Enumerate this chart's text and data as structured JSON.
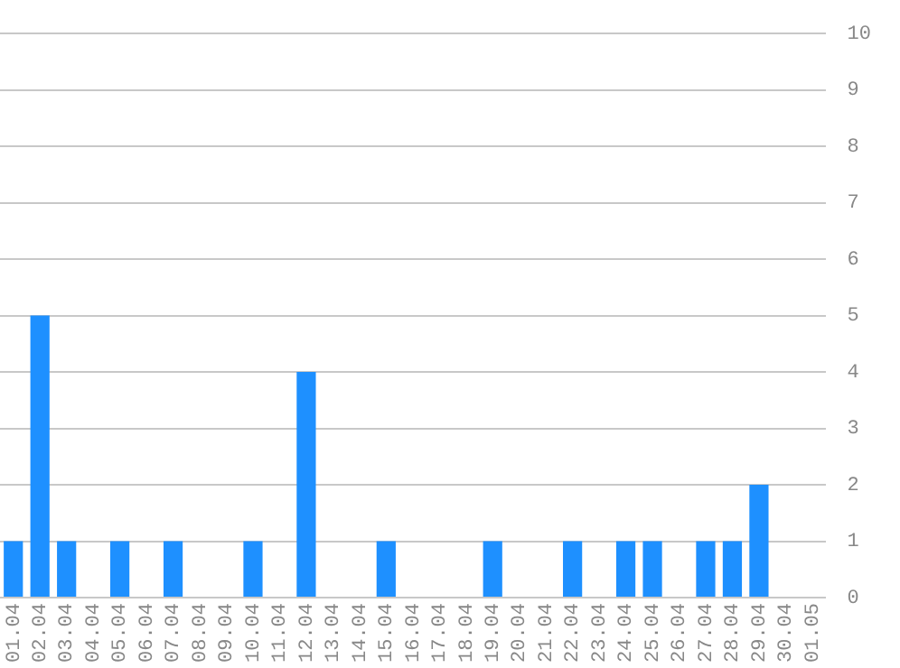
{
  "chart_data": {
    "type": "bar",
    "categories": [
      "01.04",
      "02.04",
      "03.04",
      "04.04",
      "05.04",
      "06.04",
      "07.04",
      "08.04",
      "09.04",
      "10.04",
      "11.04",
      "12.04",
      "13.04",
      "14.04",
      "15.04",
      "16.04",
      "17.04",
      "18.04",
      "19.04",
      "20.04",
      "21.04",
      "22.04",
      "23.04",
      "24.04",
      "25.04",
      "26.04",
      "27.04",
      "28.04",
      "29.04",
      "30.04",
      "01.05"
    ],
    "values": [
      1,
      5,
      1,
      0,
      1,
      0,
      1,
      0,
      0,
      1,
      0,
      4,
      0,
      0,
      1,
      0,
      0,
      0,
      1,
      0,
      0,
      1,
      0,
      1,
      1,
      0,
      1,
      1,
      2,
      0,
      0
    ],
    "color": "#1e90ff",
    "ylim": [
      0,
      10
    ],
    "yticks": [
      0,
      1,
      2,
      3,
      4,
      5,
      6,
      7,
      8,
      9,
      10
    ],
    "grid": "y",
    "legend": false
  }
}
